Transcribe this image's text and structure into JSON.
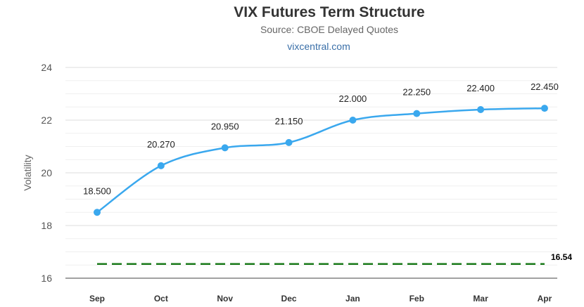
{
  "header": {
    "title": "VIX Futures Term Structure",
    "subtitle": "Source: CBOE Delayed Quotes",
    "credit": "vixcentral.com"
  },
  "colors": {
    "series": "#3aa8ee",
    "reference": "#1a7a1a",
    "grid": "#e6e6e6",
    "axis_text": "#555555",
    "category_text": "#333333"
  },
  "chart_data": {
    "type": "line",
    "title": "VIX Futures Term Structure",
    "subtitle": "Source: CBOE Delayed Quotes",
    "xlabel": "",
    "ylabel": "Volatility",
    "ylim": [
      16,
      24
    ],
    "y_ticks": [
      "16",
      "18",
      "20",
      "22",
      "24"
    ],
    "grid": true,
    "categories": [
      "Sep",
      "Oct",
      "Nov",
      "Dec",
      "Jan",
      "Feb",
      "Mar",
      "Apr"
    ],
    "series": [
      {
        "values": [
          18.5,
          20.27,
          20.95,
          21.15,
          22.0,
          22.25,
          22.4,
          22.45
        ],
        "data_labels": [
          "18.500",
          "20.270",
          "20.950",
          "21.150",
          "22.000",
          "22.250",
          "22.400",
          "22.450"
        ]
      }
    ],
    "reference_line": {
      "value": 16.54,
      "label": "16.54",
      "style": "dashed"
    }
  }
}
